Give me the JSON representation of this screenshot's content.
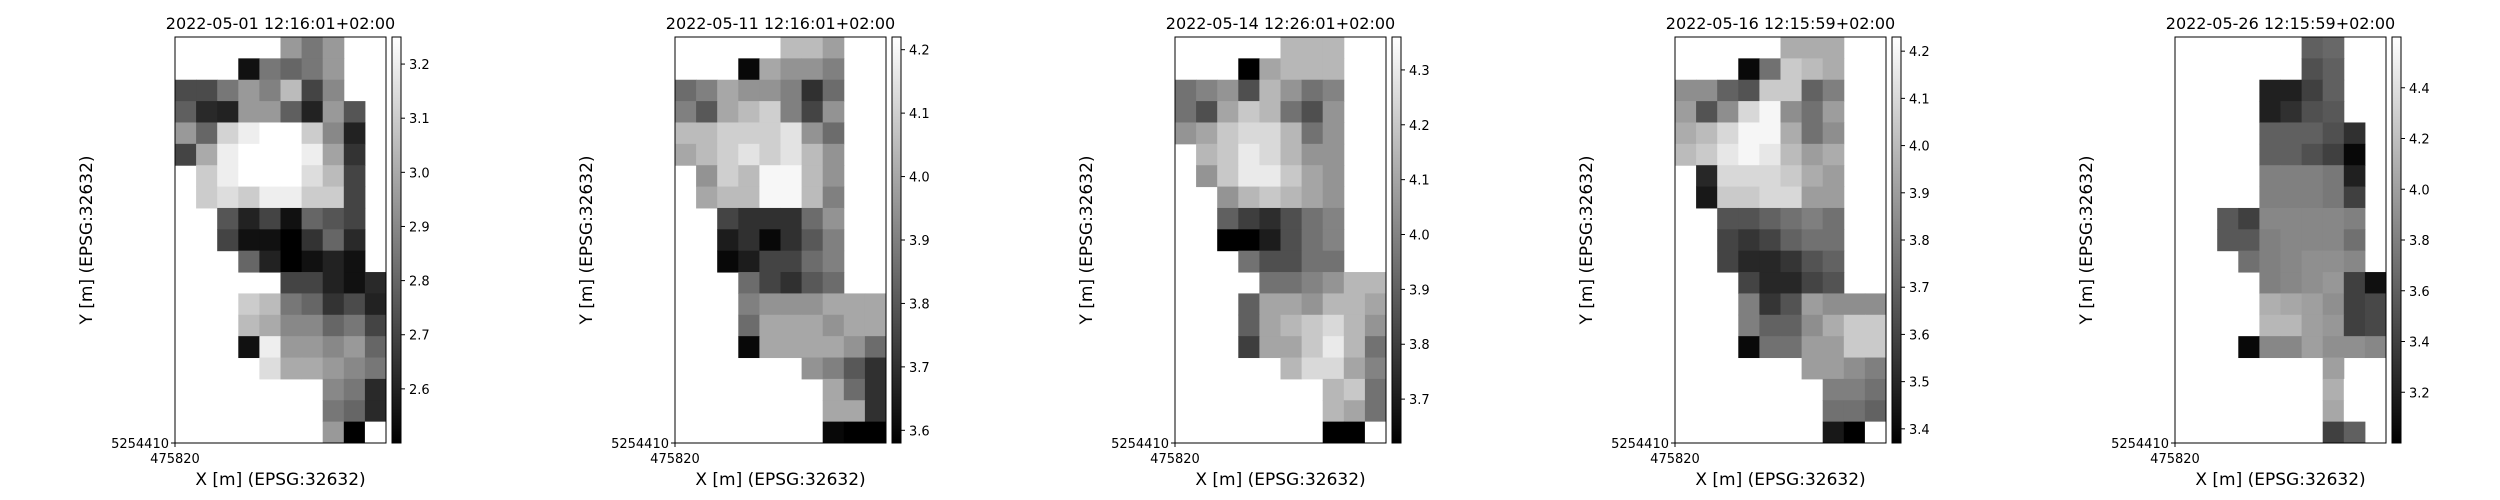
{
  "figure": {
    "xlabel": "X [m] (EPSG:32632)",
    "ylabel": "Y [m] (EPSG:32632)",
    "x_origin_label": "475820",
    "y_origin_label": "5254410"
  },
  "chart_data": [
    {
      "type": "heatmap",
      "title": "2022-05-01 12:16:01+02:00",
      "xlabel": "X [m] (EPSG:32632)",
      "ylabel": "Y [m] (EPSG:32632)",
      "x_tick_labels": [
        "475820"
      ],
      "y_tick_labels": [
        "5254410"
      ],
      "colormap": "gray",
      "colorbar_range": [
        2.5,
        3.25
      ],
      "colorbar_ticks": [
        2.6,
        2.7,
        2.8,
        2.9,
        3.0,
        3.1,
        3.2
      ],
      "grid_shape": [
        19,
        10
      ],
      "values": [
        [
          null,
          null,
          null,
          null,
          null,
          2.95,
          2.85,
          2.95,
          null,
          null
        ],
        [
          null,
          null,
          null,
          2.55,
          2.85,
          2.8,
          2.85,
          2.95,
          null,
          null
        ],
        [
          2.72,
          2.72,
          2.85,
          2.95,
          2.88,
          3.05,
          2.7,
          2.9,
          null,
          null
        ],
        [
          2.78,
          2.62,
          2.6,
          2.95,
          2.95,
          2.78,
          2.6,
          2.95,
          2.75,
          null
        ],
        [
          2.95,
          2.8,
          3.12,
          3.2,
          3.25,
          3.25,
          3.1,
          2.9,
          2.6,
          null
        ],
        [
          2.7,
          3.0,
          3.2,
          3.25,
          3.25,
          3.25,
          3.2,
          2.98,
          2.65,
          null
        ],
        [
          null,
          3.1,
          3.2,
          3.25,
          3.25,
          3.25,
          3.15,
          3.05,
          2.7,
          null
        ],
        [
          null,
          3.1,
          3.15,
          3.1,
          3.2,
          3.2,
          3.1,
          3.1,
          2.7,
          null
        ],
        [
          null,
          null,
          2.75,
          2.6,
          2.7,
          2.55,
          2.8,
          2.75,
          2.7,
          null
        ],
        [
          null,
          null,
          2.7,
          2.55,
          2.55,
          2.5,
          2.65,
          2.8,
          2.62,
          null
        ],
        [
          null,
          null,
          null,
          2.8,
          2.6,
          2.5,
          2.55,
          2.6,
          2.55,
          null
        ],
        [
          null,
          null,
          null,
          null,
          null,
          2.7,
          2.7,
          2.6,
          2.55,
          2.62
        ],
        [
          null,
          null,
          null,
          3.1,
          3.05,
          2.85,
          2.8,
          2.65,
          2.72,
          2.6
        ],
        [
          null,
          null,
          null,
          3.05,
          3.0,
          2.9,
          2.9,
          2.8,
          2.85,
          2.7
        ],
        [
          null,
          null,
          null,
          2.55,
          3.2,
          2.95,
          2.95,
          2.9,
          2.95,
          2.8
        ],
        [
          null,
          null,
          null,
          null,
          3.15,
          3.0,
          3.0,
          2.95,
          2.9,
          2.85
        ],
        [
          null,
          null,
          null,
          null,
          null,
          null,
          null,
          2.9,
          2.85,
          2.62
        ],
        [
          null,
          null,
          null,
          null,
          null,
          null,
          null,
          2.85,
          2.8,
          2.62
        ],
        [
          null,
          null,
          null,
          null,
          null,
          null,
          null,
          2.95,
          2.5,
          3.25
        ]
      ]
    },
    {
      "type": "heatmap",
      "title": "2022-05-11 12:16:01+02:00",
      "xlabel": "X [m] (EPSG:32632)",
      "ylabel": "Y [m] (EPSG:32632)",
      "x_tick_labels": [
        "475820"
      ],
      "y_tick_labels": [
        "5254410"
      ],
      "colormap": "gray",
      "colorbar_range": [
        3.58,
        4.22
      ],
      "colorbar_ticks": [
        3.6,
        3.7,
        3.8,
        3.9,
        4.0,
        4.1,
        4.2
      ],
      "grid_shape": [
        19,
        10
      ],
      "values": [
        [
          null,
          null,
          null,
          null,
          null,
          4.05,
          4.05,
          3.98,
          null,
          null
        ],
        [
          null,
          null,
          null,
          3.6,
          4.0,
          3.95,
          3.95,
          3.9,
          null,
          null
        ],
        [
          3.85,
          3.9,
          4.0,
          3.95,
          3.95,
          3.9,
          3.7,
          3.85,
          null,
          null
        ],
        [
          3.9,
          3.8,
          4.0,
          4.05,
          4.1,
          3.9,
          3.75,
          3.95,
          null,
          null
        ],
        [
          4.05,
          4.05,
          4.1,
          4.1,
          4.1,
          4.15,
          3.95,
          3.85,
          null,
          null
        ],
        [
          4.0,
          4.05,
          4.1,
          4.15,
          4.1,
          4.15,
          4.05,
          3.95,
          null,
          null
        ],
        [
          null,
          3.95,
          4.1,
          4.05,
          4.2,
          4.2,
          4.05,
          3.95,
          null,
          null
        ],
        [
          null,
          4.0,
          4.05,
          4.05,
          4.2,
          4.2,
          4.05,
          3.9,
          null,
          null
        ],
        [
          null,
          null,
          3.75,
          3.7,
          3.7,
          3.7,
          3.85,
          3.95,
          null,
          null
        ],
        [
          null,
          null,
          3.65,
          3.7,
          3.6,
          3.7,
          3.8,
          3.9,
          null,
          null
        ],
        [
          null,
          null,
          3.6,
          3.65,
          3.75,
          3.75,
          3.85,
          3.9,
          null,
          null
        ],
        [
          null,
          null,
          null,
          3.85,
          3.75,
          3.7,
          3.8,
          3.85,
          null,
          null
        ],
        [
          null,
          null,
          null,
          3.9,
          3.95,
          3.95,
          3.95,
          4.0,
          4.0,
          4.0
        ],
        [
          null,
          null,
          null,
          3.85,
          4.0,
          4.0,
          4.0,
          3.95,
          4.0,
          4.0
        ],
        [
          null,
          null,
          null,
          3.6,
          4.0,
          4.0,
          4.0,
          4.0,
          3.95,
          3.85
        ],
        [
          null,
          null,
          null,
          null,
          null,
          null,
          3.95,
          3.9,
          3.8,
          3.7
        ],
        [
          null,
          null,
          null,
          null,
          null,
          null,
          null,
          4.0,
          3.85,
          3.7
        ],
        [
          null,
          null,
          null,
          null,
          null,
          null,
          null,
          4.0,
          4.0,
          3.7
        ],
        [
          null,
          null,
          null,
          null,
          null,
          null,
          null,
          3.6,
          3.58,
          3.58
        ]
      ]
    },
    {
      "type": "heatmap",
      "title": "2022-05-14 12:26:01+02:00",
      "xlabel": "X [m] (EPSG:32632)",
      "ylabel": "Y [m] (EPSG:32632)",
      "x_tick_labels": [
        "475820"
      ],
      "y_tick_labels": [
        "5254410"
      ],
      "colormap": "gray",
      "colorbar_range": [
        3.62,
        4.36
      ],
      "colorbar_ticks": [
        3.7,
        3.8,
        3.9,
        4.0,
        4.1,
        4.2,
        4.3
      ],
      "grid_shape": [
        19,
        10
      ],
      "values": [
        [
          null,
          null,
          null,
          null,
          null,
          4.15,
          4.15,
          4.15,
          null,
          null
        ],
        [
          null,
          null,
          null,
          3.62,
          4.1,
          4.15,
          4.15,
          4.15,
          null,
          null
        ],
        [
          3.95,
          4.0,
          4.05,
          3.85,
          4.15,
          4.05,
          3.95,
          4.0,
          null,
          null
        ],
        [
          3.95,
          3.85,
          4.1,
          4.2,
          4.15,
          3.95,
          3.85,
          4.05,
          null,
          null
        ],
        [
          4.05,
          4.1,
          4.2,
          4.25,
          4.25,
          4.15,
          3.95,
          4.05,
          null,
          null
        ],
        [
          null,
          4.15,
          4.2,
          4.3,
          4.25,
          4.15,
          4.05,
          4.05,
          null,
          null
        ],
        [
          null,
          4.05,
          4.2,
          4.3,
          4.3,
          4.2,
          4.1,
          4.05,
          null,
          null
        ],
        [
          null,
          null,
          4.05,
          4.15,
          4.2,
          4.15,
          4.1,
          4.05,
          null,
          null
        ],
        [
          null,
          null,
          3.9,
          3.8,
          3.75,
          3.85,
          3.95,
          4.0,
          null,
          null
        ],
        [
          null,
          null,
          3.62,
          3.62,
          3.7,
          3.85,
          3.95,
          4.0,
          null,
          null
        ],
        [
          null,
          null,
          null,
          3.95,
          3.85,
          3.85,
          3.95,
          3.95,
          null,
          null
        ],
        [
          null,
          null,
          null,
          null,
          3.95,
          3.95,
          4.0,
          4.05,
          4.15,
          4.15
        ],
        [
          null,
          null,
          null,
          3.9,
          4.1,
          4.1,
          4.05,
          4.15,
          4.15,
          4.1
        ],
        [
          null,
          null,
          null,
          3.9,
          4.1,
          4.15,
          4.2,
          4.25,
          4.15,
          4.05
        ],
        [
          null,
          null,
          null,
          3.8,
          4.1,
          4.1,
          4.2,
          4.3,
          4.15,
          3.95
        ],
        [
          null,
          null,
          null,
          null,
          null,
          4.15,
          4.25,
          4.25,
          4.1,
          4.0
        ],
        [
          null,
          null,
          null,
          null,
          null,
          null,
          null,
          4.15,
          4.2,
          3.95
        ],
        [
          null,
          null,
          null,
          null,
          null,
          null,
          null,
          4.15,
          4.1,
          3.95
        ],
        [
          null,
          null,
          null,
          null,
          null,
          null,
          null,
          3.62,
          3.62,
          4.36
        ]
      ]
    },
    {
      "type": "heatmap",
      "title": "2022-05-16 12:15:59+02:00",
      "xlabel": "X [m] (EPSG:32632)",
      "ylabel": "Y [m] (EPSG:32632)",
      "x_tick_labels": [
        "475820"
      ],
      "y_tick_labels": [
        "5254410"
      ],
      "colormap": "gray",
      "colorbar_range": [
        3.37,
        4.23
      ],
      "colorbar_ticks": [
        3.4,
        3.5,
        3.6,
        3.7,
        3.8,
        3.9,
        4.0,
        4.1,
        4.2
      ],
      "grid_shape": [
        19,
        10
      ],
      "values": [
        [
          null,
          null,
          null,
          null,
          null,
          3.95,
          3.95,
          3.95,
          null,
          null
        ],
        [
          null,
          null,
          null,
          3.4,
          3.75,
          4.05,
          4.0,
          3.95,
          null,
          null
        ],
        [
          3.85,
          3.85,
          3.7,
          3.65,
          4.05,
          4.05,
          3.7,
          3.8,
          null,
          null
        ],
        [
          3.9,
          3.65,
          3.85,
          4.1,
          4.2,
          3.85,
          3.75,
          3.9,
          null,
          null
        ],
        [
          3.95,
          4.0,
          4.1,
          4.2,
          4.2,
          3.95,
          3.75,
          3.85,
          null,
          null
        ],
        [
          4.0,
          4.05,
          4.15,
          4.2,
          4.15,
          4.0,
          3.9,
          3.95,
          null,
          null
        ],
        [
          null,
          3.5,
          4.1,
          4.1,
          4.1,
          4.05,
          3.95,
          3.9,
          null,
          null
        ],
        [
          null,
          3.45,
          4.05,
          4.05,
          4.1,
          4.1,
          3.9,
          3.9,
          null,
          null
        ],
        [
          null,
          null,
          3.65,
          3.65,
          3.7,
          3.75,
          3.8,
          3.75,
          null,
          null
        ],
        [
          null,
          null,
          3.6,
          3.55,
          3.6,
          3.7,
          3.75,
          3.75,
          null,
          null
        ],
        [
          null,
          null,
          3.6,
          3.5,
          3.5,
          3.55,
          3.65,
          3.7,
          null,
          null
        ],
        [
          null,
          null,
          null,
          3.6,
          3.5,
          3.5,
          3.6,
          3.65,
          null,
          null
        ],
        [
          null,
          null,
          null,
          3.8,
          3.55,
          3.65,
          3.9,
          3.85,
          3.85,
          3.85
        ],
        [
          null,
          null,
          null,
          3.8,
          3.7,
          3.7,
          3.85,
          3.95,
          4.05,
          4.05
        ],
        [
          null,
          null,
          null,
          3.4,
          3.75,
          3.75,
          3.9,
          3.9,
          4.05,
          4.05
        ],
        [
          null,
          null,
          null,
          null,
          null,
          null,
          3.9,
          3.9,
          3.85,
          3.8
        ],
        [
          null,
          null,
          null,
          null,
          null,
          null,
          null,
          3.8,
          3.8,
          3.75
        ],
        [
          null,
          null,
          null,
          null,
          null,
          null,
          null,
          3.75,
          3.75,
          3.7
        ],
        [
          null,
          null,
          null,
          null,
          null,
          null,
          null,
          3.45,
          3.37,
          4.23
        ]
      ]
    },
    {
      "type": "heatmap",
      "title": "2022-05-26 12:15:59+02:00",
      "xlabel": "X [m] (EPSG:32632)",
      "ylabel": "Y [m] (EPSG:32632)",
      "x_tick_labels": [
        "475820"
      ],
      "y_tick_labels": [
        "5254410"
      ],
      "colormap": "gray",
      "colorbar_range": [
        3.0,
        4.6
      ],
      "colorbar_ticks": [
        3.2,
        3.4,
        3.6,
        3.8,
        4.0,
        4.2,
        4.4
      ],
      "grid_shape": [
        19,
        10
      ],
      "values": [
        [
          null,
          null,
          null,
          null,
          null,
          null,
          3.6,
          3.65,
          null,
          null
        ],
        [
          null,
          null,
          null,
          null,
          null,
          null,
          3.5,
          3.6,
          null,
          null
        ],
        [
          null,
          null,
          null,
          null,
          3.2,
          3.2,
          3.4,
          3.6,
          null,
          null
        ],
        [
          null,
          null,
          null,
          null,
          3.2,
          3.3,
          3.5,
          3.55,
          null,
          null
        ],
        [
          null,
          null,
          null,
          null,
          3.6,
          3.6,
          3.6,
          3.5,
          3.3,
          null
        ],
        [
          null,
          null,
          null,
          null,
          3.6,
          3.6,
          3.5,
          3.4,
          3.05,
          null
        ],
        [
          null,
          null,
          null,
          null,
          3.8,
          3.8,
          3.8,
          3.75,
          3.2,
          null
        ],
        [
          null,
          null,
          null,
          null,
          3.8,
          3.8,
          3.8,
          3.75,
          3.4,
          null
        ],
        [
          null,
          null,
          3.55,
          3.4,
          3.85,
          3.85,
          3.85,
          3.85,
          3.8,
          null
        ],
        [
          null,
          null,
          3.55,
          3.55,
          3.8,
          3.85,
          3.85,
          3.85,
          3.7,
          null
        ],
        [
          null,
          null,
          null,
          3.7,
          3.8,
          3.85,
          3.9,
          3.9,
          3.85,
          null
        ],
        [
          null,
          null,
          null,
          null,
          3.8,
          3.85,
          3.9,
          3.95,
          3.4,
          3.1
        ],
        [
          null,
          null,
          null,
          null,
          4.1,
          4.05,
          4.0,
          3.9,
          3.4,
          3.45
        ],
        [
          null,
          null,
          null,
          null,
          4.15,
          4.15,
          4.0,
          3.95,
          3.4,
          3.45
        ],
        [
          null,
          null,
          null,
          3.05,
          3.85,
          3.85,
          4.0,
          3.9,
          3.9,
          3.85
        ],
        [
          null,
          null,
          null,
          null,
          null,
          null,
          null,
          4.0,
          null,
          null
        ],
        [
          null,
          null,
          null,
          null,
          null,
          null,
          null,
          4.1,
          4.6,
          4.6
        ],
        [
          null,
          null,
          null,
          null,
          null,
          null,
          null,
          4.05,
          4.6,
          4.6
        ],
        [
          null,
          null,
          null,
          null,
          null,
          null,
          null,
          3.4,
          3.6,
          null
        ]
      ]
    }
  ]
}
